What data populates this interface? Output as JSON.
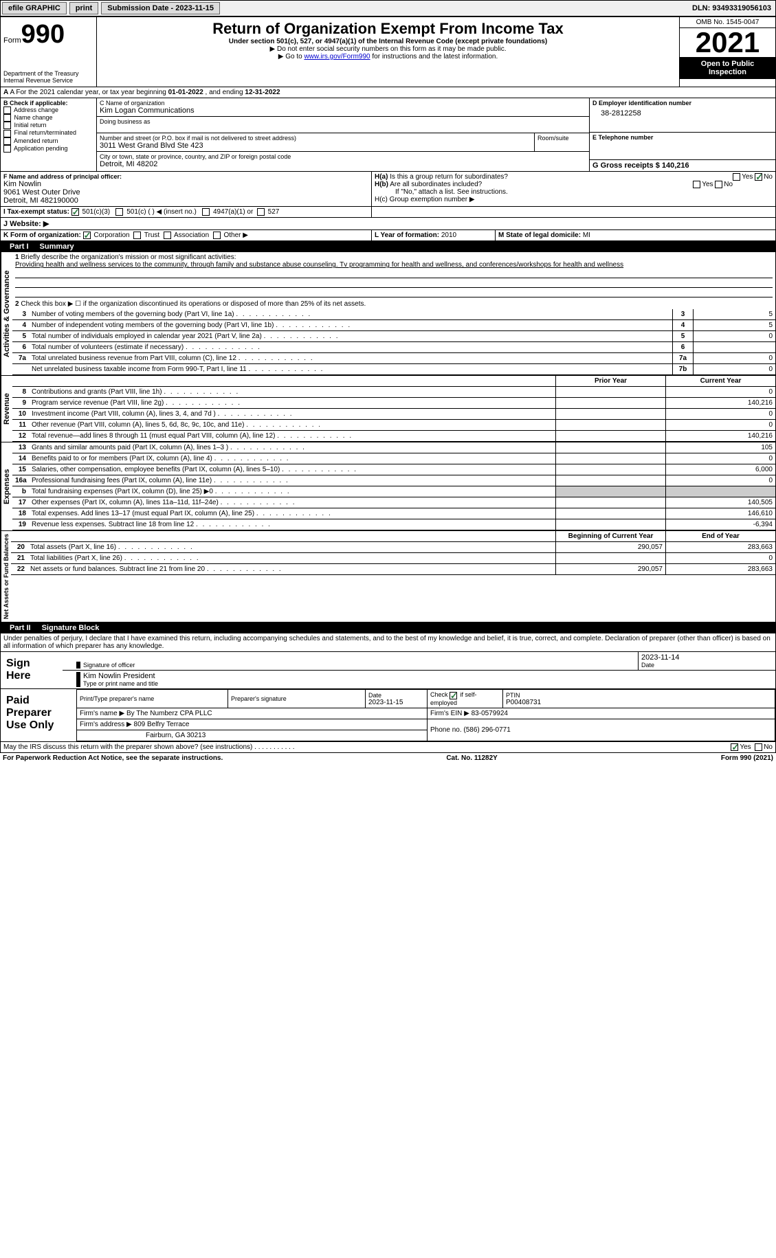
{
  "topbar": {
    "efile": "efile GRAPHIC",
    "print": "print",
    "sub_label": "Submission Date - ",
    "sub_date": "2023-11-15",
    "dln_label": "DLN: ",
    "dln": "93493319056103"
  },
  "header": {
    "form_prefix": "Form",
    "form_num": "990",
    "dept": "Department of the Treasury\nInternal Revenue Service",
    "title": "Return of Organization Exempt From Income Tax",
    "subtitle": "Under section 501(c), 527, or 4947(a)(1) of the Internal Revenue Code (except private foundations)",
    "note1": "▶ Do not enter social security numbers on this form as it may be made public.",
    "note2_pre": "▶ Go to ",
    "note2_link": "www.irs.gov/Form990",
    "note2_post": " for instructions and the latest information.",
    "omb": "OMB No. 1545-0047",
    "year": "2021",
    "inspection": "Open to Public Inspection"
  },
  "section_a": {
    "text_pre": "A For the 2021 calendar year, or tax year beginning ",
    "begin": "01-01-2022",
    "mid": " , and ending ",
    "end": "12-31-2022"
  },
  "section_b": {
    "label": "B Check if applicable:",
    "items": [
      "Address change",
      "Name change",
      "Initial return",
      "Final return/terminated",
      "Amended return",
      "Application pending"
    ]
  },
  "section_c": {
    "name_label": "C Name of organization",
    "name": "Kim Logan Communications",
    "dba_label": "Doing business as",
    "dba": "",
    "street_label": "Number and street (or P.O. box if mail is not delivered to street address)",
    "room_label": "Room/suite",
    "street": "3011 West Grand Blvd Ste 423",
    "city_label": "City or town, state or province, country, and ZIP or foreign postal code",
    "city": "Detroit, MI  48202"
  },
  "section_d": {
    "label": "D Employer identification number",
    "ein": "38-2812258",
    "e_label": "E Telephone number",
    "phone": "",
    "g_label": "G Gross receipts $ ",
    "g_val": "140,216"
  },
  "section_f": {
    "label": "F Name and address of principal officer:",
    "name": "Kim Nowlin",
    "street": "9061 West Outer Drive",
    "city": "Detroit, MI  482190000"
  },
  "section_h": {
    "ha_label": "H(a)  Is this a group return for subordinates?",
    "hb_label": "H(b)  Are all subordinates included?",
    "hb_note": "If \"No,\" attach a list. See instructions.",
    "hc_label": "H(c)  Group exemption number ▶",
    "yes": "Yes",
    "no": "No"
  },
  "section_i": {
    "label": "I    Tax-exempt status:",
    "opt1": "501(c)(3)",
    "opt2": "501(c) (  ) ◀ (insert no.)",
    "opt3": "4947(a)(1) or",
    "opt4": "527"
  },
  "section_j": {
    "label": "J   Website: ▶",
    "val": ""
  },
  "section_k": {
    "label": "K Form of organization:",
    "opts": [
      "Corporation",
      "Trust",
      "Association",
      "Other ▶"
    ],
    "l_label": "L Year of formation: ",
    "l_val": "2010",
    "m_label": "M State of legal domicile: ",
    "m_val": "MI"
  },
  "part1": {
    "num": "Part I",
    "title": "Summary"
  },
  "summary": {
    "sections": [
      "Activities & Governance",
      "Revenue",
      "Expenses",
      "Net Assets or Fund Balances"
    ],
    "l1_label": "Briefly describe the organization's mission or most significant activities:",
    "l1_text": "Providing health and wellness services to the community, through family and substance abuse counseling. Tv programming for health and wellness, and conferences/workshops for health and wellness",
    "l2": "Check this box ▶ ☐ if the organization discontinued its operations or disposed of more than 25% of its net assets.",
    "rows_a": [
      {
        "n": "3",
        "t": "Number of voting members of the governing body (Part VI, line 1a)",
        "box": "3",
        "v": "5"
      },
      {
        "n": "4",
        "t": "Number of independent voting members of the governing body (Part VI, line 1b)",
        "box": "4",
        "v": "5"
      },
      {
        "n": "5",
        "t": "Total number of individuals employed in calendar year 2021 (Part V, line 2a)",
        "box": "5",
        "v": "0"
      },
      {
        "n": "6",
        "t": "Total number of volunteers (estimate if necessary)",
        "box": "6",
        "v": ""
      },
      {
        "n": "7a",
        "t": "Total unrelated business revenue from Part VIII, column (C), line 12",
        "box": "7a",
        "v": "0"
      },
      {
        "n": "",
        "t": "Net unrelated business taxable income from Form 990-T, Part I, line 11",
        "box": "7b",
        "v": "0"
      }
    ],
    "hdr_prior": "Prior Year",
    "hdr_current": "Current Year",
    "rows_rev": [
      {
        "n": "8",
        "t": "Contributions and grants (Part VIII, line 1h)",
        "p": "",
        "c": "0"
      },
      {
        "n": "9",
        "t": "Program service revenue (Part VIII, line 2g)",
        "p": "",
        "c": "140,216"
      },
      {
        "n": "10",
        "t": "Investment income (Part VIII, column (A), lines 3, 4, and 7d )",
        "p": "",
        "c": "0"
      },
      {
        "n": "11",
        "t": "Other revenue (Part VIII, column (A), lines 5, 6d, 8c, 9c, 10c, and 11e)",
        "p": "",
        "c": "0"
      },
      {
        "n": "12",
        "t": "Total revenue—add lines 8 through 11 (must equal Part VIII, column (A), line 12)",
        "p": "",
        "c": "140,216"
      }
    ],
    "rows_exp": [
      {
        "n": "13",
        "t": "Grants and similar amounts paid (Part IX, column (A), lines 1–3 )",
        "p": "",
        "c": "105"
      },
      {
        "n": "14",
        "t": "Benefits paid to or for members (Part IX, column (A), line 4)",
        "p": "",
        "c": "0"
      },
      {
        "n": "15",
        "t": "Salaries, other compensation, employee benefits (Part IX, column (A), lines 5–10)",
        "p": "",
        "c": "6,000"
      },
      {
        "n": "16a",
        "t": "Professional fundraising fees (Part IX, column (A), line 11e)",
        "p": "",
        "c": "0"
      },
      {
        "n": "b",
        "t": "Total fundraising expenses (Part IX, column (D), line 25) ▶0",
        "p": "shaded",
        "c": "shaded"
      },
      {
        "n": "17",
        "t": "Other expenses (Part IX, column (A), lines 11a–11d, 11f–24e)",
        "p": "",
        "c": "140,505"
      },
      {
        "n": "18",
        "t": "Total expenses. Add lines 13–17 (must equal Part IX, column (A), line 25)",
        "p": "",
        "c": "146,610"
      },
      {
        "n": "19",
        "t": "Revenue less expenses. Subtract line 18 from line 12",
        "p": "",
        "c": "-6,394"
      }
    ],
    "hdr_begin": "Beginning of Current Year",
    "hdr_end": "End of Year",
    "rows_net": [
      {
        "n": "20",
        "t": "Total assets (Part X, line 16)",
        "p": "290,057",
        "c": "283,663"
      },
      {
        "n": "21",
        "t": "Total liabilities (Part X, line 26)",
        "p": "",
        "c": "0"
      },
      {
        "n": "22",
        "t": "Net assets or fund balances. Subtract line 21 from line 20",
        "p": "290,057",
        "c": "283,663"
      }
    ]
  },
  "part2": {
    "num": "Part II",
    "title": "Signature Block"
  },
  "sig": {
    "penalty": "Under penalties of perjury, I declare that I have examined this return, including accompanying schedules and statements, and to the best of my knowledge and belief, it is true, correct, and complete. Declaration of preparer (other than officer) is based on all information of which preparer has any knowledge.",
    "sign_here": "Sign Here",
    "sig_officer": "Signature of officer",
    "date": "Date",
    "date_val": "2023-11-14",
    "name_title": "Kim Nowlin  President",
    "type_name": "Type or print name and title"
  },
  "preparer": {
    "label": "Paid Preparer Use Only",
    "print_name_label": "Print/Type preparer's name",
    "print_name": "",
    "sig_label": "Preparer's signature",
    "date_label": "Date",
    "date": "2023-11-15",
    "check_label": "Check ☑ if self-employed",
    "ptin_label": "PTIN",
    "ptin": "P00408731",
    "firm_name_label": "Firm's name    ▶ ",
    "firm_name": "By The Numberz CPA PLLC",
    "firm_ein_label": "Firm's EIN ▶ ",
    "firm_ein": "83-0579924",
    "firm_addr_label": "Firm's address ▶ ",
    "firm_addr": "809 Belfry Terrace",
    "firm_city": "Fairburn, GA  30213",
    "phone_label": "Phone no. ",
    "phone": "(586) 296-0771"
  },
  "discuss": {
    "text": "May the IRS discuss this return with the preparer shown above? (see instructions)",
    "yes": "Yes",
    "no": "No"
  },
  "footer": {
    "left": "For Paperwork Reduction Act Notice, see the separate instructions.",
    "mid": "Cat. No. 11282Y",
    "right": "Form 990 (2021)"
  }
}
